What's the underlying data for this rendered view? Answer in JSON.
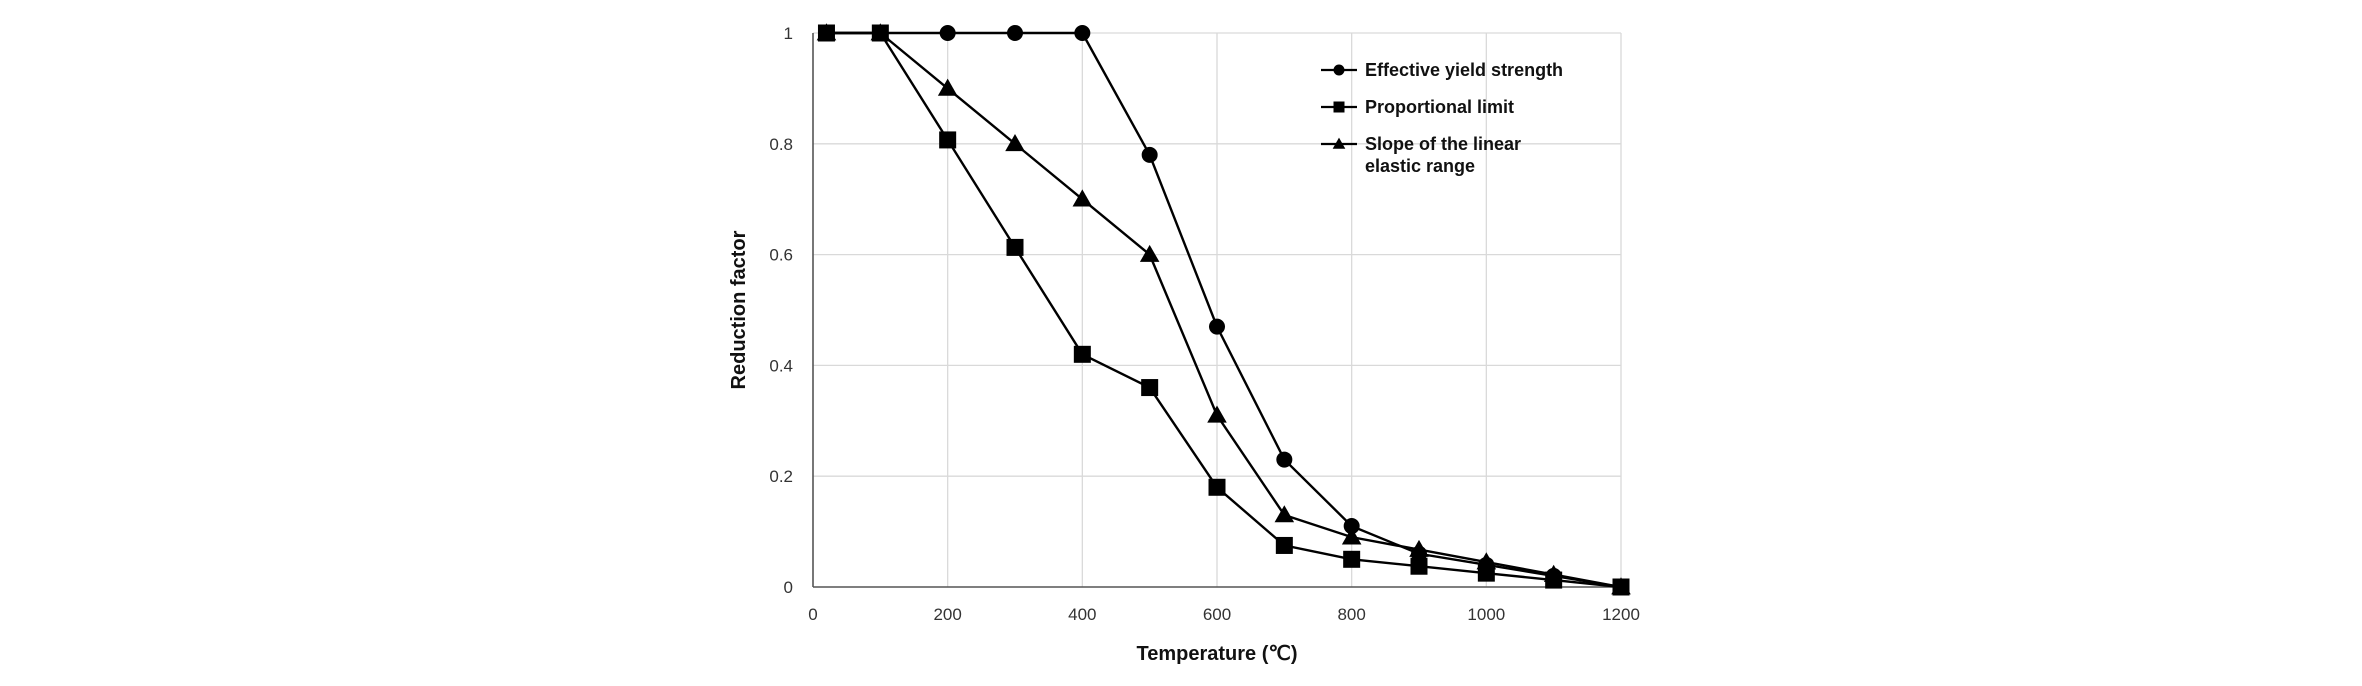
{
  "chart_data": {
    "type": "line",
    "xlabel": "Temperature (℃)",
    "ylabel": "Reduction factor",
    "xlim": [
      0,
      1200
    ],
    "ylim": [
      0,
      1
    ],
    "xticks": [
      "0",
      "200",
      "400",
      "600",
      "800",
      "1000",
      "1200"
    ],
    "yticks": [
      "0",
      "0.2",
      "0.4",
      "0.6",
      "0.8",
      "1"
    ],
    "grid": true,
    "legend_position": "top-right",
    "series": [
      {
        "name": "Effective yield strength",
        "marker": "circle",
        "x": [
          20,
          100,
          200,
          300,
          400,
          500,
          600,
          700,
          800,
          900,
          1000,
          1100,
          1200
        ],
        "y": [
          1.0,
          1.0,
          1.0,
          1.0,
          1.0,
          0.78,
          0.47,
          0.23,
          0.11,
          0.06,
          0.04,
          0.02,
          0.0
        ]
      },
      {
        "name": "Proportional limit",
        "marker": "square",
        "x": [
          20,
          100,
          200,
          300,
          400,
          500,
          600,
          700,
          800,
          900,
          1000,
          1100,
          1200
        ],
        "y": [
          1.0,
          1.0,
          0.807,
          0.613,
          0.42,
          0.36,
          0.18,
          0.075,
          0.05,
          0.0375,
          0.025,
          0.0125,
          0.0
        ]
      },
      {
        "name": "Slope of the linear elastic range",
        "name_lines": [
          "Slope of the linear",
          "elastic range"
        ],
        "marker": "triangle",
        "x": [
          20,
          100,
          200,
          300,
          400,
          500,
          600,
          700,
          800,
          900,
          1000,
          1100,
          1200
        ],
        "y": [
          1.0,
          1.0,
          0.9,
          0.8,
          0.7,
          0.6,
          0.31,
          0.13,
          0.09,
          0.0675,
          0.045,
          0.0225,
          0.0
        ]
      }
    ]
  }
}
